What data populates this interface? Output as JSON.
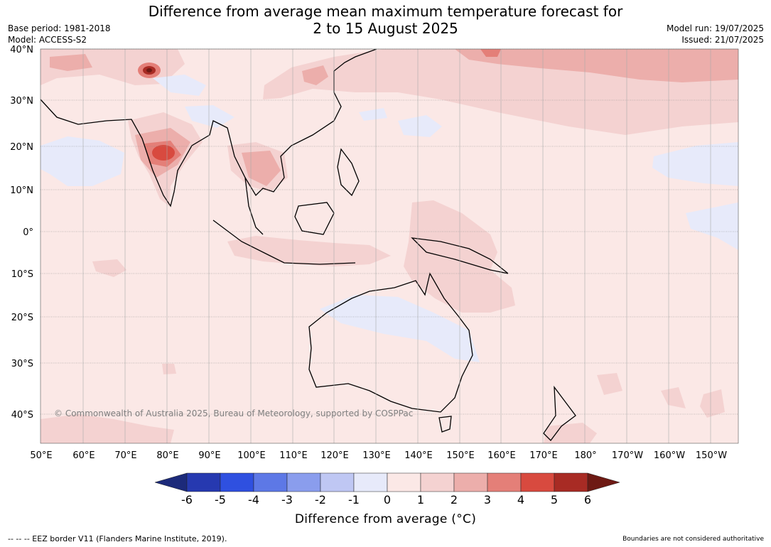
{
  "title_line1": "Difference from average mean maximum temperature forecast for",
  "title_line2": "2 to 15 August 2025",
  "meta": {
    "base_period": "Base period: 1981-2018",
    "model": "Model: ACCESS-S2",
    "model_run": "Model run: 19/07/2025",
    "issued": "Issued: 21/07/2025"
  },
  "map": {
    "lat_labels": [
      "40°N",
      "30°N",
      "20°N",
      "10°N",
      "0°",
      "10°S",
      "20°S",
      "30°S",
      "40°S"
    ],
    "lon_labels": [
      "50°E",
      "60°E",
      "70°E",
      "80°E",
      "90°E",
      "100°E",
      "110°E",
      "120°E",
      "130°E",
      "140°E",
      "150°E",
      "160°E",
      "170°E",
      "180°",
      "170°W",
      "160°W",
      "150°W"
    ],
    "copyright": "© Commonwealth of Australia 2025, Bureau of Meteorology, supported by COSPPac",
    "background_color": "#fbe8e6"
  },
  "colorbar": {
    "ticks": [
      "-6",
      "-5",
      "-4",
      "-3",
      "-2",
      "-1",
      "0",
      "1",
      "2",
      "3",
      "4",
      "5",
      "6"
    ],
    "colors": [
      "#1c2a7a",
      "#2639b0",
      "#2f50e0",
      "#5d78e6",
      "#8a9ded",
      "#bfc7f3",
      "#e7eafa",
      "#fbe8e6",
      "#f4d2d1",
      "#ecaeab",
      "#e47f78",
      "#d84a3f",
      "#a82b24",
      "#6e1a14"
    ],
    "title": "Difference from average (°C)"
  },
  "footer": {
    "left": "--  --  -- EEZ border V11 (Flanders Marine Institute, 2019).",
    "right": "Boundaries are not considered authoritative"
  }
}
